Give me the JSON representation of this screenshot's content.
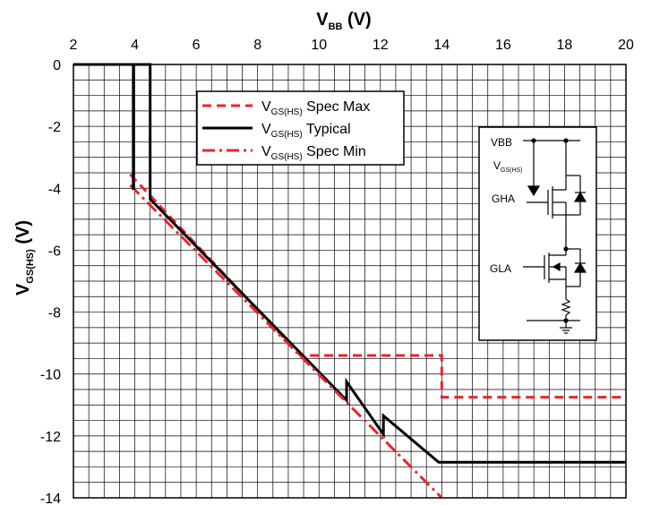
{
  "chart_data": {
    "type": "line",
    "xlabel": {
      "main": "V",
      "sub": "BB",
      "unit": " (V)"
    },
    "ylabel": {
      "main": "V",
      "sub": "GS(HS)",
      "unit": " (V)"
    },
    "xlim": [
      2,
      20
    ],
    "ylim": [
      -14,
      0
    ],
    "x_ticks": [
      2,
      4,
      6,
      8,
      10,
      12,
      14,
      16,
      18,
      20
    ],
    "y_ticks": [
      0,
      -2,
      -4,
      -6,
      -8,
      -10,
      -12,
      -14
    ],
    "x_tick_labels": [
      "2",
      "4",
      "6",
      "8",
      "10",
      "12",
      "14",
      "16",
      "18",
      "20"
    ],
    "y_tick_labels": [
      "0",
      "-2",
      "-4",
      "-6",
      "-8",
      "-10",
      "-12",
      "-14"
    ],
    "grid": true,
    "legend_position": "top-center",
    "series": [
      {
        "name": {
          "main": "V",
          "sub": "GS(HS)",
          "suffix": " Spec Max"
        },
        "color": "#e8262b",
        "style": "dashed",
        "x": [
          3.85,
          9.4,
          14.0,
          14.0,
          20.0
        ],
        "y": [
          -3.55,
          -9.4,
          -9.4,
          -10.75,
          -10.75
        ]
      },
      {
        "name": {
          "main": "V",
          "sub": "GS(HS)",
          "suffix": " Typical"
        },
        "color": "#000000",
        "style": "solid",
        "x": [
          2.0,
          4.5,
          4.5,
          10.9,
          10.9,
          12.1,
          12.1,
          13.9,
          20.0
        ],
        "y": [
          0.0,
          0.0,
          -4.35,
          -10.85,
          -10.25,
          -11.95,
          -11.35,
          -12.85,
          -12.85
        ]
      },
      {
        "name": {
          "main": "V",
          "sub": "GS(HS)",
          "suffix": " Spec Min"
        },
        "color": "#e8262b",
        "style": "dashdot",
        "x": [
          3.85,
          14.0
        ],
        "y": [
          -3.9,
          -14.0
        ]
      }
    ],
    "extra_segments": [
      {
        "color": "#000000",
        "x": [
          3.95,
          3.95
        ],
        "y": [
          0.0,
          -4.05
        ]
      }
    ]
  },
  "inset": {
    "vbb_label": "VBB",
    "vgs_label": {
      "main": "V",
      "sub": "GS(HS)"
    },
    "gha_label": "GHA",
    "gla_label": "GLA"
  }
}
